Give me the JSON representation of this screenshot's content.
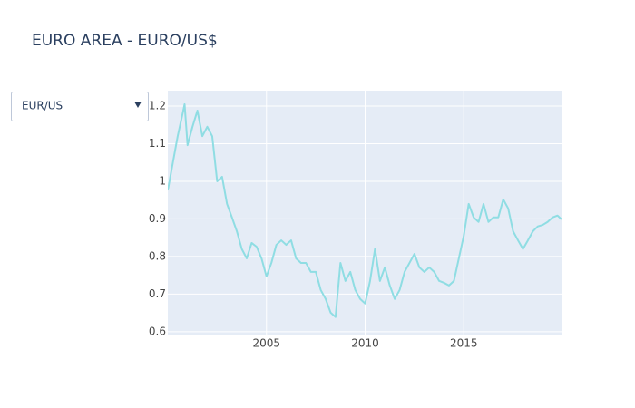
{
  "chart_data": {
    "type": "line",
    "title": "EURO AREA - EURO/US$",
    "dropdown": "EUR/US",
    "color": "#8fdde3",
    "grid": true,
    "x": [
      2000.0,
      2000.25,
      2000.5,
      2000.75,
      2000.85,
      2001.0,
      2001.25,
      2001.5,
      2001.75,
      2002.0,
      2002.25,
      2002.5,
      2002.75,
      2003.0,
      2003.25,
      2003.5,
      2003.75,
      2004.0,
      2004.25,
      2004.5,
      2004.75,
      2005.0,
      2005.25,
      2005.5,
      2005.75,
      2006.0,
      2006.25,
      2006.5,
      2006.75,
      2007.0,
      2007.25,
      2007.5,
      2007.75,
      2008.0,
      2008.25,
      2008.5,
      2008.75,
      2009.0,
      2009.25,
      2009.5,
      2009.75,
      2010.0,
      2010.25,
      2010.5,
      2010.75,
      2011.0,
      2011.25,
      2011.5,
      2011.75,
      2012.0,
      2012.25,
      2012.5,
      2012.75,
      2013.0,
      2013.25,
      2013.5,
      2013.75,
      2014.0,
      2014.25,
      2014.5,
      2014.75,
      2015.0,
      2015.25,
      2015.5,
      2015.75,
      2016.0,
      2016.25,
      2016.5,
      2016.75,
      2017.0,
      2017.25,
      2017.5,
      2017.75,
      2018.0,
      2018.25,
      2018.5,
      2018.75,
      2019.0,
      2019.25,
      2019.5,
      2019.75,
      2019.95
    ],
    "values": [
      0.976,
      1.048,
      1.12,
      1.18,
      1.205,
      1.096,
      1.145,
      1.188,
      1.12,
      1.145,
      1.12,
      1.0,
      1.012,
      0.94,
      0.904,
      0.867,
      0.82,
      0.795,
      0.836,
      0.826,
      0.795,
      0.747,
      0.783,
      0.831,
      0.843,
      0.831,
      0.843,
      0.795,
      0.783,
      0.783,
      0.759,
      0.759,
      0.711,
      0.687,
      0.651,
      0.639,
      0.783,
      0.735,
      0.759,
      0.711,
      0.687,
      0.675,
      0.735,
      0.82,
      0.735,
      0.771,
      0.723,
      0.687,
      0.711,
      0.759,
      0.783,
      0.807,
      0.771,
      0.759,
      0.771,
      0.759,
      0.735,
      0.73,
      0.723,
      0.735,
      0.795,
      0.855,
      0.94,
      0.904,
      0.892,
      0.94,
      0.892,
      0.904,
      0.904,
      0.952,
      0.928,
      0.867,
      0.843,
      0.82,
      0.843,
      0.867,
      0.88,
      0.884,
      0.892,
      0.904,
      0.909,
      0.899
    ],
    "xlim": [
      2000,
      2020
    ],
    "xticks": [
      2005,
      2010,
      2015
    ],
    "ylim": [
      0.59,
      1.241
    ],
    "yticks": [
      0.6,
      0.7,
      0.8,
      0.9,
      1,
      1.1,
      1.2
    ]
  }
}
